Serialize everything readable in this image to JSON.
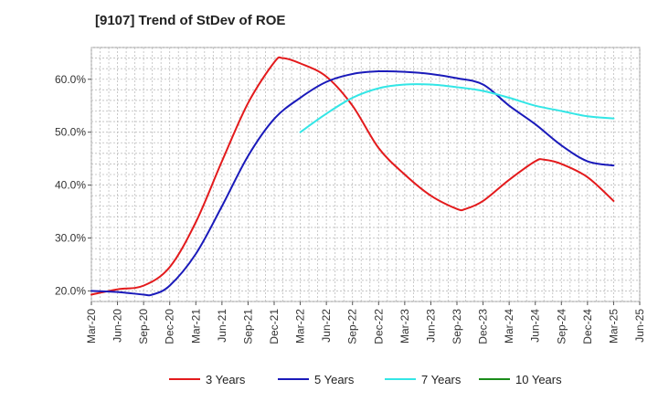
{
  "chart_data": {
    "type": "line",
    "title": "[9107]  Trend of StDev of ROE",
    "xlabel": "",
    "ylabel": "",
    "x_ticks": [
      "Mar-20",
      "Jun-20",
      "Sep-20",
      "Dec-20",
      "Mar-21",
      "Jun-21",
      "Sep-21",
      "Dec-21",
      "Mar-22",
      "Jun-22",
      "Sep-22",
      "Dec-22",
      "Mar-23",
      "Jun-23",
      "Sep-23",
      "Dec-23",
      "Mar-24",
      "Jun-24",
      "Sep-24",
      "Dec-24",
      "Mar-25",
      "Jun-25"
    ],
    "y_ticks": [
      "20.0%",
      "30.0%",
      "40.0%",
      "50.0%",
      "60.0%"
    ],
    "y_tick_values": [
      20,
      30,
      40,
      50,
      60
    ],
    "ylim": [
      18,
      66
    ],
    "grid": true,
    "legend_position": "bottom",
    "series": [
      {
        "name": "3 Years",
        "color": "#e31a1c",
        "x": [
          "Mar-20",
          "Jun-20",
          "Sep-20",
          "Dec-20",
          "Mar-21",
          "Jun-21",
          "Sep-21",
          "Dec-21",
          "Jan-22",
          "Mar-22",
          "Jun-22",
          "Sep-22",
          "Dec-22",
          "Mar-23",
          "Jun-23",
          "Sep-23",
          "Oct-23",
          "Dec-23",
          "Mar-24",
          "Jun-24",
          "Jul-24",
          "Sep-24",
          "Dec-24",
          "Mar-25"
        ],
        "values": [
          19.3,
          20.3,
          21.0,
          24.5,
          33.0,
          44.5,
          55.5,
          63.2,
          64.0,
          63.0,
          60.5,
          55.0,
          47.0,
          42.0,
          38.0,
          35.5,
          35.5,
          37.0,
          41.0,
          44.5,
          44.8,
          44.0,
          41.5,
          37.0
        ]
      },
      {
        "name": "5 Years",
        "color": "#1a1aba",
        "x": [
          "Mar-20",
          "Jun-20",
          "Sep-20",
          "Oct-20",
          "Dec-20",
          "Mar-21",
          "Jun-21",
          "Sep-21",
          "Dec-21",
          "Mar-22",
          "Jun-22",
          "Sep-22",
          "Dec-22",
          "Mar-23",
          "Jun-23",
          "Sep-23",
          "Dec-23",
          "Mar-24",
          "Jun-24",
          "Sep-24",
          "Dec-24",
          "Mar-25"
        ],
        "values": [
          20.0,
          19.8,
          19.3,
          19.3,
          21.0,
          27.0,
          36.0,
          45.5,
          52.5,
          56.5,
          59.5,
          61.0,
          61.5,
          61.4,
          61.0,
          60.2,
          59.0,
          55.0,
          51.5,
          47.5,
          44.5,
          43.7
        ]
      },
      {
        "name": "7 Years",
        "color": "#33e6e6",
        "x": [
          "Mar-22",
          "Jun-22",
          "Sep-22",
          "Dec-22",
          "Mar-23",
          "Jun-23",
          "Sep-23",
          "Dec-23",
          "Mar-24",
          "Jun-24",
          "Sep-24",
          "Dec-24",
          "Mar-25"
        ],
        "values": [
          50.0,
          53.5,
          56.5,
          58.3,
          59.0,
          59.0,
          58.5,
          57.8,
          56.5,
          55.0,
          54.0,
          53.0,
          52.6
        ]
      },
      {
        "name": "10 Years",
        "color": "#1a8c1a",
        "x": [],
        "values": []
      }
    ]
  }
}
